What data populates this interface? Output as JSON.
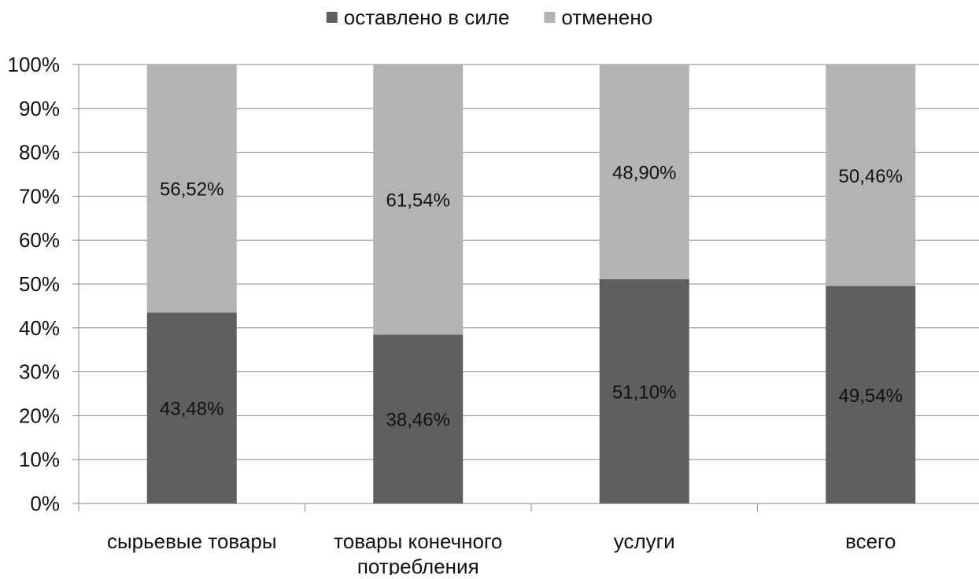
{
  "chart_data": {
    "type": "bar",
    "stacked": true,
    "percent": true,
    "categories": [
      [
        "сырьевые товары"
      ],
      [
        "товары конечного",
        "потребления"
      ],
      [
        "услуги"
      ],
      [
        "всего"
      ]
    ],
    "series": [
      {
        "name": "оставлено в силе",
        "color": "#5f5f5f",
        "values": [
          43.48,
          38.46,
          51.1,
          49.54
        ],
        "labels": [
          "43,48%",
          "38,46%",
          "51,10%",
          "49,54%"
        ]
      },
      {
        "name": "отменено",
        "color": "#b3b3b3",
        "values": [
          56.52,
          61.54,
          48.9,
          50.46
        ],
        "labels": [
          "56,52%",
          "61,54%",
          "48,90%",
          "50,46%"
        ]
      }
    ],
    "ylim": [
      0,
      100
    ],
    "yticks": [
      "0%",
      "10%",
      "20%",
      "30%",
      "40%",
      "50%",
      "60%",
      "70%",
      "80%",
      "90%",
      "100%"
    ],
    "grid": true,
    "legend": "top-center",
    "title": "",
    "xlabel": "",
    "ylabel": ""
  }
}
